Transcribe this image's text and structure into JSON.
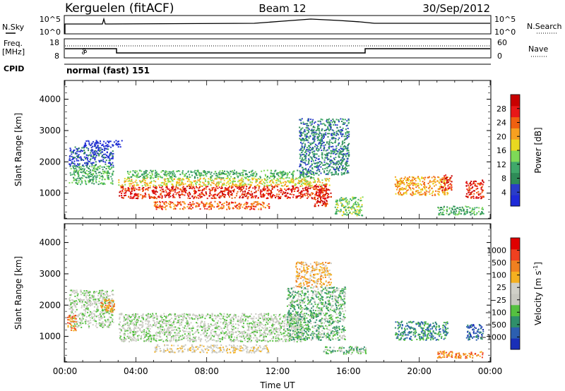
{
  "header": {
    "title": "Kerguelen (fitACF)",
    "beam": "Beam 12",
    "date": "30/Sep/2012"
  },
  "noise_panel": {
    "left_label": "N.Sky",
    "right_label": "N.Search",
    "left_ticks": [
      "10^5",
      "10^0"
    ],
    "right_ticks": [
      "10^5",
      "10^0"
    ]
  },
  "freq_panel": {
    "left_label_line1": "Freq.",
    "left_label_line2": "[MHz]",
    "right_label": "Nave",
    "left_ticks": [
      "18",
      "8"
    ],
    "right_ticks": [
      "60",
      "0"
    ]
  },
  "cpid": {
    "label": "CPID",
    "value": "normal (fast) 151"
  },
  "colors": {
    "power": [
      "#1e2ad8",
      "#2a3dc8",
      "#2e8b57",
      "#3fa86a",
      "#7ed957",
      "#e8d820",
      "#f7a020",
      "#f06010",
      "#e81818",
      "#c80000"
    ],
    "velocity": [
      "#1a2fb8",
      "#2c5fb0",
      "#2f8f6a",
      "#55c040",
      "#c8c8c0",
      "#d0d0c8",
      "#f4b020",
      "#f08020",
      "#f04020",
      "#e00000"
    ]
  },
  "chart_data": [
    {
      "type": "heatmap",
      "name": "power",
      "xlabel": "",
      "ylabel": "Slant Range [km]",
      "xlim": [
        0,
        24
      ],
      "ylim": [
        180,
        4600
      ],
      "yticks": [
        "1000",
        "2000",
        "3000",
        "4000"
      ],
      "colorbar_label": "Power [dB]",
      "colorbar_ticks": [
        "28",
        "24",
        "20",
        "16",
        "12",
        "8",
        "4"
      ],
      "regions": [
        {
          "x": [
            3.0,
            15.0
          ],
          "y": [
            850,
            1250
          ],
          "level": 8
        },
        {
          "x": [
            3.0,
            15.0
          ],
          "y": [
            1250,
            1500
          ],
          "level": 5
        },
        {
          "x": [
            3.5,
            14.0
          ],
          "y": [
            1500,
            1750
          ],
          "level": 3
        },
        {
          "x": [
            0.2,
            2.7
          ],
          "y": [
            1300,
            1900
          ],
          "level": 3
        },
        {
          "x": [
            0.2,
            2.7
          ],
          "y": [
            1900,
            2500
          ],
          "level": 1
        },
        {
          "x": [
            1.0,
            3.2
          ],
          "y": [
            2500,
            2700
          ],
          "level": 0
        },
        {
          "x": [
            5.0,
            11.5
          ],
          "y": [
            500,
            750
          ],
          "level": 7
        },
        {
          "x": [
            14.0,
            14.8
          ],
          "y": [
            600,
            1300
          ],
          "level": 8
        },
        {
          "x": [
            13.2,
            16.0
          ],
          "y": [
            1600,
            3400
          ],
          "level": 2
        },
        {
          "x": [
            15.2,
            16.8
          ],
          "y": [
            300,
            900
          ],
          "level": 4
        },
        {
          "x": [
            18.6,
            21.6
          ],
          "y": [
            950,
            1550
          ],
          "level": 6
        },
        {
          "x": [
            21.2,
            21.8
          ],
          "y": [
            1100,
            1600
          ],
          "level": 8
        },
        {
          "x": [
            22.6,
            23.6
          ],
          "y": [
            850,
            1450
          ],
          "level": 8
        },
        {
          "x": [
            21.0,
            23.6
          ],
          "y": [
            330,
            600
          ],
          "level": 3
        }
      ]
    },
    {
      "type": "heatmap",
      "name": "velocity",
      "xlabel": "Time UT",
      "ylabel": "Slant Range [km]",
      "xlim": [
        0,
        24
      ],
      "ylim": [
        180,
        4600
      ],
      "xticks": [
        "00:00",
        "04:00",
        "08:00",
        "12:00",
        "16:00",
        "20:00",
        "00:00"
      ],
      "yticks": [
        "1000",
        "2000",
        "3000",
        "4000"
      ],
      "colorbar_label": "Velocity [m s",
      "colorbar_unit_exponent": "-1",
      "colorbar_ticks": [
        "1000",
        "500",
        "100",
        "25",
        "−25",
        "−100",
        "−500",
        "−1000"
      ],
      "regions": [
        {
          "x": [
            3.0,
            13.5
          ],
          "y": [
            850,
            1750
          ],
          "level": 4
        },
        {
          "x": [
            0.2,
            2.7
          ],
          "y": [
            1300,
            2500
          ],
          "level": 4
        },
        {
          "x": [
            5.0,
            11.5
          ],
          "y": [
            500,
            750
          ],
          "level": 5
        },
        {
          "x": [
            12.5,
            15.8
          ],
          "y": [
            900,
            2600
          ],
          "level": 3
        },
        {
          "x": [
            13.0,
            15.0
          ],
          "y": [
            2600,
            3400
          ],
          "level": 6
        },
        {
          "x": [
            14.5,
            17.0
          ],
          "y": [
            450,
            700
          ],
          "level": 3
        },
        {
          "x": [
            18.6,
            21.6
          ],
          "y": [
            900,
            1500
          ],
          "level": 2
        },
        {
          "x": [
            0.1,
            0.6
          ],
          "y": [
            1200,
            1700
          ],
          "level": 7
        },
        {
          "x": [
            2.0,
            2.8
          ],
          "y": [
            1800,
            2200
          ],
          "level": 7
        },
        {
          "x": [
            21.0,
            23.6
          ],
          "y": [
            330,
            550
          ],
          "level": 7
        },
        {
          "x": [
            22.6,
            23.6
          ],
          "y": [
            900,
            1400
          ],
          "level": 1
        }
      ]
    }
  ]
}
